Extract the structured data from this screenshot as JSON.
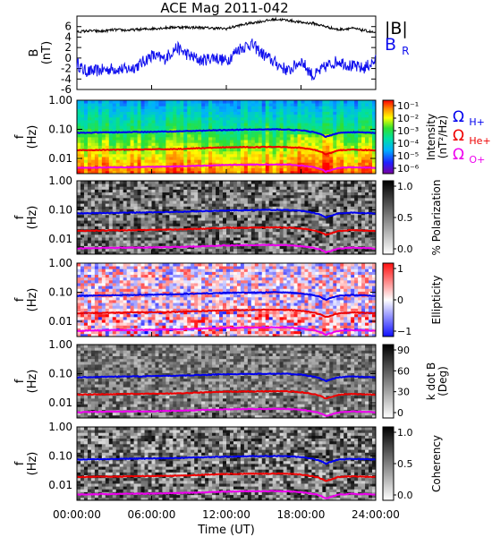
{
  "title": "ACE Mag 2011-042",
  "xaxis": {
    "label": "Time (UT)",
    "ticks": [
      "00:00:00",
      "06:00:00",
      "12:00:00",
      "18:00:00",
      "24:00:00"
    ]
  },
  "colors": {
    "bmag": "#000000",
    "br": "#1010ee",
    "omega_h": "#0000ee",
    "omega_he": "#ee0000",
    "omega_o": "#ee00ee"
  },
  "labels": {
    "panel1_ylabel_1": "B",
    "panel1_ylabel_2": "(nT)",
    "f_label": "f",
    "hz_label": "(Hz)",
    "bmag_legend": "|B|",
    "br_legend_main": "B",
    "br_legend_sub": "R",
    "omega_symbol": "Ω",
    "omega_h_sub": "H+",
    "omega_he_sub": "He+",
    "omega_o_sub": "O+"
  },
  "panels": [
    {
      "name": "intensity",
      "colorbar": "rainbow",
      "scale_label_1": "Intensity",
      "scale_label_2": "(nT²/Hz)",
      "cb_ticks": [
        "10⁻¹",
        "10⁻²",
        "10⁻³",
        "10⁻⁴",
        "10⁻⁵",
        "10⁻⁶"
      ]
    },
    {
      "name": "polarization",
      "colorbar": "gray",
      "scale_label_1": "% Polarization",
      "scale_label_2": "",
      "cb_ticks": [
        "1.0",
        "0.5",
        "0.0"
      ]
    },
    {
      "name": "ellipticity",
      "colorbar": "bwr",
      "scale_label_1": "Ellipticity",
      "scale_label_2": "",
      "cb_ticks": [
        "1",
        "0",
        "−1"
      ]
    },
    {
      "name": "kdotb",
      "colorbar": "gray",
      "scale_label_1": "k dot B",
      "scale_label_2": "(Deg)",
      "cb_ticks": [
        "90",
        "60",
        "30",
        "0"
      ]
    },
    {
      "name": "coherency",
      "colorbar": "gray",
      "scale_label_1": "Coherency",
      "scale_label_2": "",
      "cb_ticks": [
        "1.0",
        "0.5",
        "0.0"
      ]
    }
  ],
  "chart_data": [
    {
      "type": "line",
      "title": "ACE Mag 2011-042",
      "xlabel": "Time (UT)",
      "ylabel": "B (nT)",
      "x_range_hours": [
        0,
        24
      ],
      "ylim": [
        -6,
        8
      ],
      "yticks": [
        -6,
        -4,
        -2,
        0,
        2,
        4,
        6
      ],
      "series": [
        {
          "name": "|B|",
          "x": [
            0,
            1,
            2,
            3,
            4,
            6,
            8,
            10,
            12,
            13,
            14,
            16,
            17,
            18,
            19,
            20,
            21,
            22,
            23,
            24
          ],
          "values": [
            5,
            5.2,
            5.1,
            5.4,
            5.3,
            5.6,
            5.9,
            5.8,
            5.6,
            6.2,
            6.7,
            7.4,
            7.2,
            6.8,
            6.6,
            6.0,
            5.4,
            5.7,
            5.3,
            4.8
          ]
        },
        {
          "name": "B_R",
          "x": [
            0,
            0.5,
            1,
            2,
            3,
            4,
            5,
            6,
            7,
            8,
            9,
            10,
            11,
            12,
            13,
            14,
            15,
            16,
            17,
            18,
            19,
            20,
            21,
            22,
            23,
            24
          ],
          "values": [
            -1,
            -2.3,
            -2.6,
            -2.3,
            -2.0,
            -2.2,
            -1.3,
            0.5,
            -0.2,
            2.0,
            0.5,
            -0.5,
            0.2,
            -0.6,
            1.8,
            2.7,
            0.6,
            -1.0,
            -2.5,
            -0.5,
            -3.5,
            -1.6,
            -0.5,
            -1.5,
            -2.0,
            -0.5
          ]
        }
      ]
    },
    {
      "type": "heatmap",
      "title": "Wave spectra (Intensity, % Polarization, Ellipticity, k dot B, Coherency)",
      "xlabel": "Time (UT)",
      "ylabel": "f (Hz)",
      "x_range_hours": [
        0,
        24
      ],
      "ylim_hz": [
        0.003,
        1.0
      ],
      "y_scale": "log",
      "yticks": [
        "1.00",
        "0.10",
        "0.01"
      ],
      "series": [
        {
          "name": "Ω H+",
          "x": [
            0,
            2,
            4,
            6,
            8,
            10,
            12,
            14,
            16,
            17,
            18,
            19,
            19.5,
            20,
            20.5,
            21,
            22,
            23,
            24
          ],
          "values": [
            0.075,
            0.078,
            0.08,
            0.082,
            0.085,
            0.09,
            0.095,
            0.098,
            0.1,
            0.098,
            0.092,
            0.08,
            0.07,
            0.055,
            0.065,
            0.075,
            0.08,
            0.078,
            0.075
          ]
        },
        {
          "name": "Ω He+",
          "x": [
            0,
            2,
            4,
            6,
            8,
            10,
            12,
            14,
            16,
            17,
            18,
            19,
            19.5,
            20,
            20.5,
            21,
            22,
            23,
            24
          ],
          "values": [
            0.019,
            0.0195,
            0.02,
            0.0205,
            0.021,
            0.0225,
            0.024,
            0.0245,
            0.025,
            0.0245,
            0.023,
            0.02,
            0.0175,
            0.014,
            0.016,
            0.019,
            0.02,
            0.0195,
            0.019
          ]
        },
        {
          "name": "Ω O+",
          "x": [
            0,
            2,
            4,
            6,
            8,
            10,
            12,
            14,
            16,
            17,
            18,
            19,
            19.5,
            20,
            20.5,
            21,
            22,
            23,
            24
          ],
          "values": [
            0.0047,
            0.0049,
            0.005,
            0.0051,
            0.0053,
            0.0056,
            0.006,
            0.0061,
            0.0062,
            0.0061,
            0.0057,
            0.005,
            0.0044,
            0.0035,
            0.004,
            0.0047,
            0.005,
            0.0049,
            0.0047
          ]
        }
      ]
    }
  ]
}
